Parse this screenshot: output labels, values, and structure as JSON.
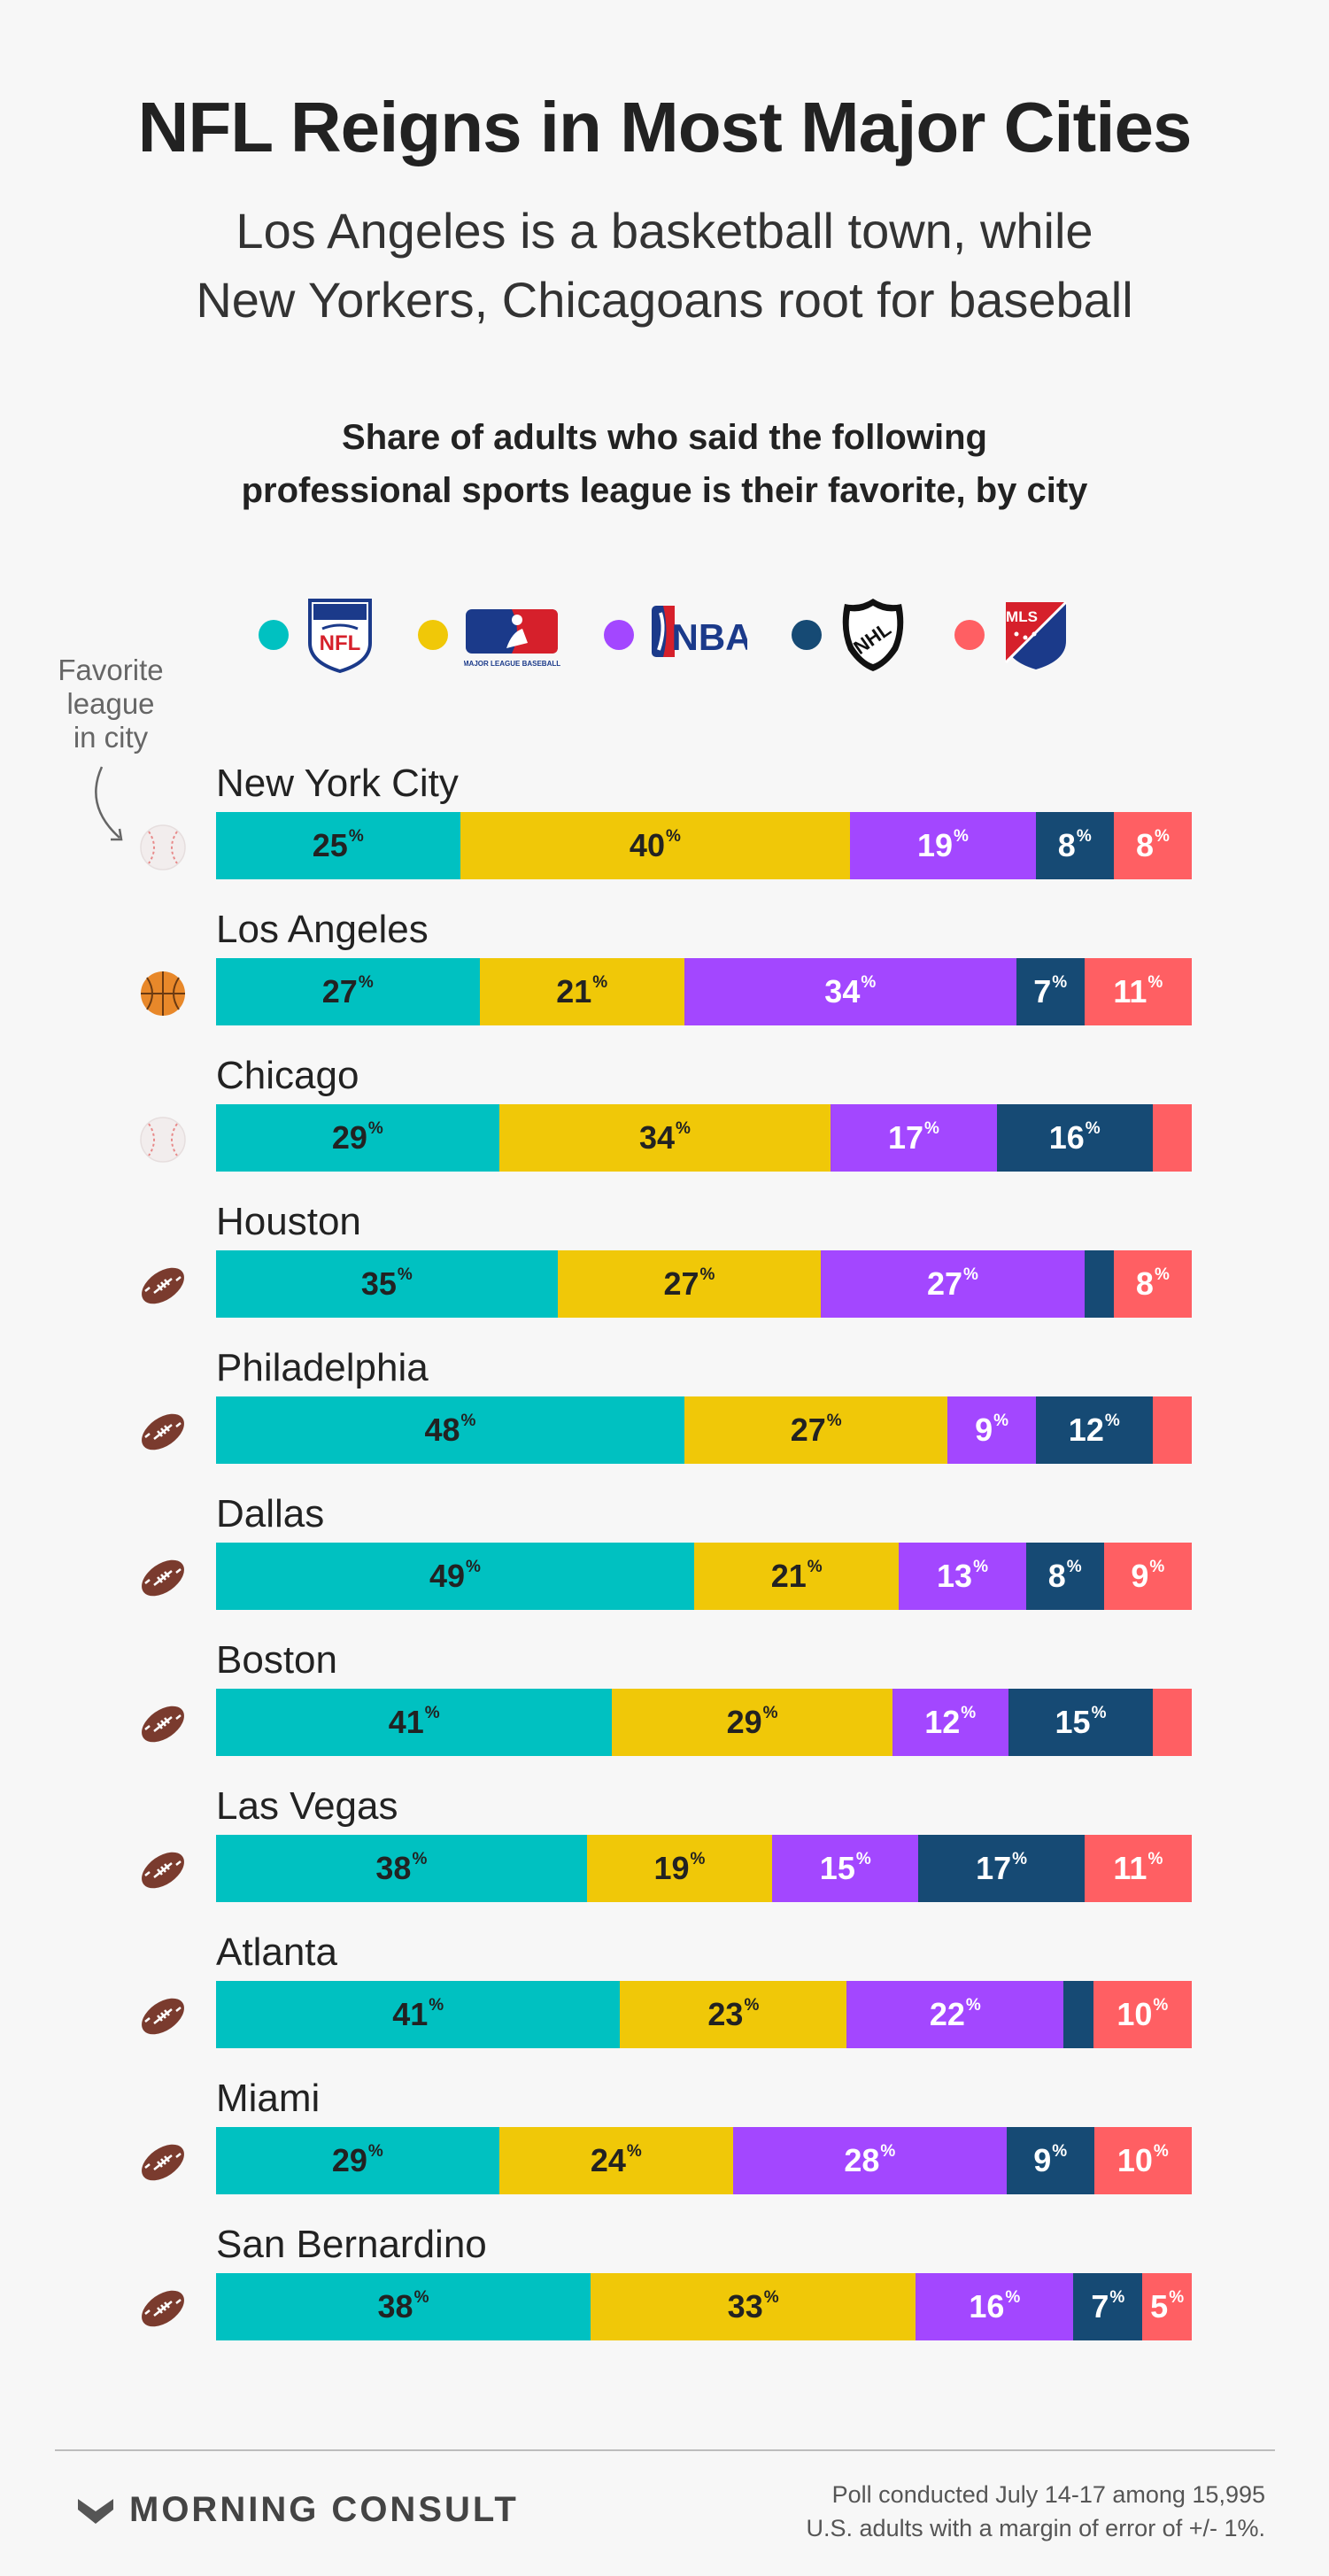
{
  "title": "NFL Reigns in Most Major Cities",
  "subtitle": [
    "Los Angeles is a basketball town, while",
    "New Yorkers, Chicagoans root for baseball"
  ],
  "caption": [
    "Share of adults who said the following",
    "professional sports league is their favorite, by city"
  ],
  "legend": [
    {
      "league": "NFL",
      "color": "#00c1c1",
      "logo_text": "NFL"
    },
    {
      "league": "MLB",
      "color": "#f0c808",
      "logo_text": "MAJOR LEAGUE BASEBALL"
    },
    {
      "league": "NBA",
      "color": "#a347ff",
      "logo_text": "NBA"
    },
    {
      "league": "NHL",
      "color": "#164a74",
      "logo_text": "NHL"
    },
    {
      "league": "MLS",
      "color": "#ff5f63",
      "logo_text": "MLS"
    }
  ],
  "favorite_note": [
    "Favorite",
    "league",
    "in city"
  ],
  "chart_data": {
    "type": "bar",
    "orientation": "horizontal",
    "stacked": true,
    "unit": "%",
    "title": "Share of adults who said the following professional sports league is their favorite, by city",
    "categories": [
      "New York City",
      "Los Angeles",
      "Chicago",
      "Houston",
      "Philadelphia",
      "Dallas",
      "Boston",
      "Las Vegas",
      "Atlanta",
      "Miami",
      "San Bernardino"
    ],
    "favorite": [
      "baseball",
      "basketball",
      "baseball",
      "football",
      "football",
      "football",
      "football",
      "football",
      "football",
      "football",
      "football"
    ],
    "series": [
      {
        "name": "NFL",
        "color": "#00c1c1",
        "label_color": "#222222",
        "values": [
          25,
          27,
          29,
          35,
          48,
          49,
          41,
          38,
          41,
          29,
          38
        ],
        "shown": [
          true,
          true,
          true,
          true,
          true,
          true,
          true,
          true,
          true,
          true,
          true
        ]
      },
      {
        "name": "MLB",
        "color": "#f0c808",
        "label_color": "#222222",
        "values": [
          40,
          21,
          34,
          27,
          27,
          21,
          29,
          19,
          23,
          24,
          33
        ],
        "shown": [
          true,
          true,
          true,
          true,
          true,
          true,
          true,
          true,
          true,
          true,
          true
        ]
      },
      {
        "name": "NBA",
        "color": "#a347ff",
        "label_color": "#ffffff",
        "values": [
          19,
          34,
          17,
          27,
          9,
          13,
          12,
          15,
          22,
          28,
          16
        ],
        "shown": [
          true,
          true,
          true,
          true,
          true,
          true,
          true,
          true,
          true,
          true,
          true
        ]
      },
      {
        "name": "NHL",
        "color": "#164a74",
        "label_color": "#ffffff",
        "values": [
          8,
          7,
          16,
          3,
          12,
          8,
          15,
          17,
          3,
          9,
          7
        ],
        "shown": [
          true,
          true,
          true,
          false,
          true,
          true,
          true,
          true,
          false,
          true,
          true
        ]
      },
      {
        "name": "MLS",
        "color": "#ff5f63",
        "label_color": "#ffffff",
        "values": [
          8,
          11,
          4,
          8,
          4,
          9,
          4,
          11,
          10,
          10,
          5
        ],
        "shown": [
          true,
          true,
          false,
          true,
          false,
          true,
          false,
          true,
          true,
          true,
          true
        ]
      }
    ]
  },
  "footer": {
    "brand": "MORNING CONSULT",
    "source": [
      "Poll conducted July 14-17 among 15,995",
      "U.S. adults with a margin of error of +/- 1%."
    ]
  }
}
